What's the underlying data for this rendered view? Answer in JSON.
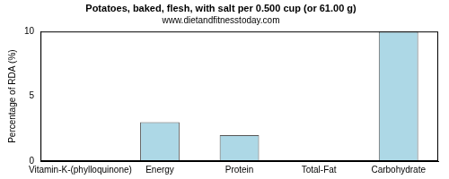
{
  "chart_data": {
    "type": "bar",
    "title": "Potatoes, baked, flesh, with salt per 0.500 cup (or 61.00 g)",
    "subtitle": "www.dietandfitnesstoday.com",
    "y_label": "Percentage of RDA (%)",
    "categories": [
      "Vitamin-K-(phylloquinone)",
      "Energy",
      "Protein",
      "Total-Fat",
      "Carbohydrate"
    ],
    "values": [
      0,
      3,
      2,
      0,
      10
    ],
    "color": "#add8e6",
    "ylim": [
      0,
      10
    ],
    "yticks": [
      0,
      5,
      10
    ],
    "grid": false
  }
}
